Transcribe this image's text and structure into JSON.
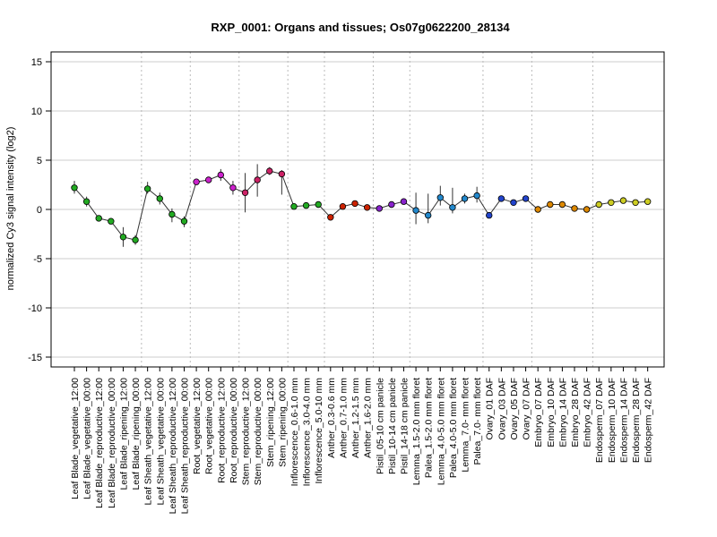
{
  "chart_data": {
    "type": "line",
    "title": "RXP_0001: Organs and tissues; Os07g0622200_28134",
    "ylabel": "normalized Cy3 signal intensity (log2)",
    "ylim": [
      -16,
      16
    ],
    "yticks": [
      -15,
      -10,
      -5,
      0,
      5,
      10,
      15
    ],
    "grid": {
      "horizontal": true,
      "vertical_group_separators": true
    },
    "categories": [
      "Leaf Blade_vegetative_12:00",
      "Leaf Blade_vegetative_00:00",
      "Leaf Blade_reproductive_12:00",
      "Leaf Blade_reproductive_00:00",
      "Leaf Blade_ripening_12:00",
      "Leaf Blade_ripening_00:00",
      "Leaf Sheath_vegetative_12:00",
      "Leaf Sheath_vegetative_00:00",
      "Leaf Sheath_reproductive_12:00",
      "Leaf Sheath_reproductive_00:00",
      "Root_vegetative_12:00",
      "Root_vegetative_00:00",
      "Root_reproductive_12:00",
      "Root_reproductive_00:00",
      "Stem_reproductive_12:00",
      "Stem_reproductive_00:00",
      "Stem_ripening_12:00",
      "Stem_ripening_00:00",
      "Inflorescence_0.6-1.0 mm",
      "Inflorescence_3.0-4.0 mm",
      "Inflorescence_5.0-10 mm",
      "Anther_0.3-0.6 mm",
      "Anther_0.7-1.0 mm",
      "Anther_1.2-1.5 mm",
      "Anther_1.6-2.0 mm",
      "Pistil_05-10 cm panicle",
      "Pistil_10-14 cm panicle",
      "Pistil_14-18 cm panicle",
      "Lemma_1.5-2.0 mm floret",
      "Palea_1.5-2.0 mm floret",
      "Lemma_4.0-5.0 mm floret",
      "Palea_4.0-5.0 mm floret",
      "Lemma_7.0- mm floret",
      "Palea_7.0- mm floret",
      "Ovary_01 DAF",
      "Ovary_03 DAF",
      "Ovary_05 DAF",
      "Ovary_07 DAF",
      "Embryo_07 DAF",
      "Embryo_10 DAF",
      "Embryo_14 DAF",
      "Embryo_28 DAF",
      "Embryo_42 DAF",
      "Endosperm_07 DAF",
      "Endosperm_10 DAF",
      "Endosperm_14 DAF",
      "Endosperm_28 DAF",
      "Endosperm_42 DAF"
    ],
    "values": [
      2.2,
      0.8,
      -0.9,
      -1.2,
      -2.8,
      -3.1,
      2.1,
      1.1,
      -0.5,
      -1.2,
      2.8,
      3.0,
      3.5,
      2.2,
      1.7,
      3.0,
      3.9,
      3.6,
      0.3,
      0.4,
      0.5,
      -0.8,
      0.3,
      0.6,
      0.2,
      0.1,
      0.5,
      0.8,
      -0.1,
      -0.6,
      1.2,
      0.2,
      1.1,
      1.4,
      -0.6,
      1.1,
      0.7,
      1.1,
      0.0,
      0.5,
      0.5,
      0.1,
      0.0,
      0.5,
      0.7,
      0.9,
      0.7,
      0.8
    ],
    "error_low": [
      1.6,
      0.3,
      -1.1,
      -1.4,
      -3.8,
      -3.6,
      1.6,
      0.5,
      -1.3,
      -1.8,
      2.6,
      2.7,
      2.9,
      1.5,
      -0.3,
      1.3,
      3.5,
      1.5,
      0.2,
      0.3,
      0.4,
      -1.0,
      0.1,
      0.4,
      0.1,
      0.0,
      0.3,
      0.6,
      -1.5,
      -1.4,
      0.4,
      -0.4,
      0.6,
      0.7,
      -0.8,
      0.9,
      0.5,
      0.9,
      -0.1,
      0.4,
      0.4,
      0.0,
      -0.1,
      0.4,
      0.5,
      0.8,
      0.5,
      0.6
    ],
    "error_high": [
      2.9,
      1.3,
      -0.7,
      -1.0,
      -1.8,
      -2.6,
      2.8,
      1.7,
      0.1,
      -0.7,
      3.0,
      3.3,
      4.1,
      2.9,
      3.7,
      4.6,
      4.3,
      4.0,
      0.4,
      0.5,
      0.6,
      -0.6,
      0.5,
      0.8,
      0.3,
      0.2,
      0.7,
      1.0,
      1.7,
      1.6,
      2.4,
      2.2,
      1.6,
      2.3,
      -0.4,
      1.3,
      0.9,
      1.3,
      0.1,
      0.6,
      0.6,
      0.2,
      0.1,
      0.6,
      0.9,
      1.0,
      0.9,
      1.0
    ],
    "colors": [
      "#22aa22",
      "#22aa22",
      "#22aa22",
      "#22aa22",
      "#22aa22",
      "#22aa22",
      "#22aa22",
      "#22aa22",
      "#22aa22",
      "#22aa22",
      "#cc22cc",
      "#cc22cc",
      "#cc22cc",
      "#cc22cc",
      "#cc2266",
      "#cc2266",
      "#cc2266",
      "#cc2266",
      "#22aa22",
      "#22aa22",
      "#22aa22",
      "#cc2200",
      "#cc2200",
      "#cc2200",
      "#cc2200",
      "#8822cc",
      "#8822cc",
      "#8822cc",
      "#2288cc",
      "#2288cc",
      "#2288cc",
      "#2288cc",
      "#2288cc",
      "#2288cc",
      "#2244cc",
      "#2244cc",
      "#2244cc",
      "#2244cc",
      "#dd8800",
      "#dd8800",
      "#dd8800",
      "#dd8800",
      "#dd8800",
      "#cccc22",
      "#cccc22",
      "#cccc22",
      "#cccc22",
      "#cccc22"
    ],
    "group_separators_after": [
      5,
      9,
      13,
      17,
      20,
      24,
      27,
      33,
      37,
      42
    ]
  }
}
